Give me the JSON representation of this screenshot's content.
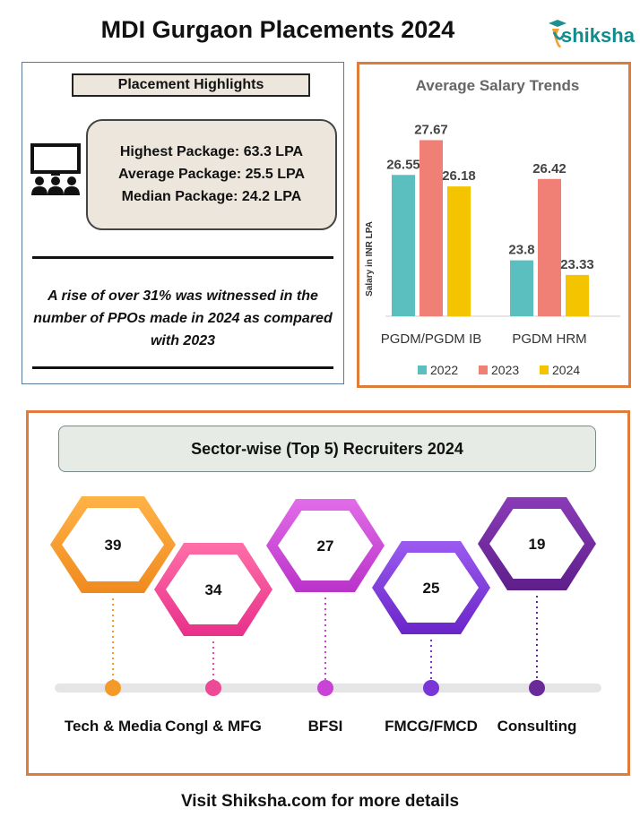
{
  "header": {
    "title": "MDI Gurgaon Placements 2024",
    "logo_text": "shiksha"
  },
  "highlights": {
    "label": "Placement Highlights",
    "highest": "Highest Package: 63.3 LPA",
    "average": "Average Package: 25.5 LPA",
    "median": "Median Package: 24.2 LPA",
    "ppo_note": "A rise of over 31% was witnessed in the number of PPOs made in 2024 as compared with 2023"
  },
  "colors": {
    "2022": "#5bbfbf",
    "2023": "#f07f75",
    "2024": "#f5c400",
    "panel_border": "#e07b39"
  },
  "chart_data": [
    {
      "type": "bar",
      "title": "Average Salary Trends",
      "ylabel": "Salary in INR LPA",
      "xlabel": "",
      "categories": [
        "PGDM/PGDM IB",
        "PGDM HRM"
      ],
      "series": [
        {
          "name": "2022",
          "values": [
            26.55,
            23.8
          ]
        },
        {
          "name": "2023",
          "values": [
            27.67,
            26.42
          ]
        },
        {
          "name": "2024",
          "values": [
            26.18,
            23.33
          ]
        }
      ],
      "ylim": [
        22,
        28
      ],
      "grid": false,
      "legend": "bottom"
    },
    {
      "type": "bar",
      "title": "Sector-wise (Top 5) Recruiters 2024",
      "categories": [
        "Tech & Media",
        "Congl & MFG",
        "BFSI",
        "FMCG/FMCD",
        "Consulting"
      ],
      "values": [
        39,
        34,
        27,
        25,
        19
      ]
    }
  ],
  "footer": "Visit Shiksha.com for more details"
}
